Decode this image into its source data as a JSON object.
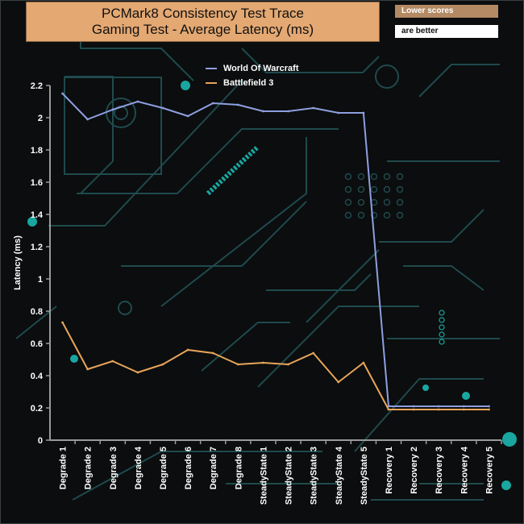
{
  "header": {
    "title_line1": "PCMark8 Consistency Test Trace",
    "title_line2": "Gaming Test -  Average Latency (ms)",
    "note_line1": "Lower scores",
    "note_line2": "are better"
  },
  "colors": {
    "background": "#0b0d0e",
    "circuit": "#1f4a4d",
    "accent_teal": "#1aa6a0",
    "title_box": "#e4a872",
    "note_box": "#b48a64",
    "axis": "#9a9a9a"
  },
  "chart_data": {
    "type": "line",
    "title": "PCMark8 Consistency Test Trace Gaming Test -  Average Latency (ms)",
    "xlabel": "",
    "ylabel": "Latency (ms)",
    "ylim": [
      0,
      2.2
    ],
    "yticks": [
      "0",
      "0.2",
      "0.4",
      "0.6",
      "0.8",
      "1",
      "1.2",
      "1.4",
      "1.6",
      "1.8",
      "2",
      "2.2"
    ],
    "grid": false,
    "legend_position": "top-center",
    "categories": [
      "Degrade 1",
      "Degrade 2",
      "Degrade 3",
      "Degrade 4",
      "Degrade 5",
      "Degrade 6",
      "Degrade 7",
      "Degrade 8",
      "SteadyState 1",
      "SteadyState 2",
      "SteadyState 3",
      "SteadyState 4",
      "SteadyState 5",
      "Recovery 1",
      "Recovery 2",
      "Recovery 3",
      "Recovery 4",
      "Recovery 5"
    ],
    "series": [
      {
        "name": "World Of Warcraft",
        "color": "#8e9fe0",
        "values": [
          2.15,
          1.99,
          2.05,
          2.1,
          2.06,
          2.01,
          2.09,
          2.08,
          2.04,
          2.04,
          2.06,
          2.03,
          2.03,
          0.21,
          0.21,
          0.21,
          0.21,
          0.21
        ]
      },
      {
        "name": "Battlefield 3",
        "color": "#e8a55a",
        "values": [
          0.73,
          0.44,
          0.49,
          0.42,
          0.47,
          0.56,
          0.54,
          0.47,
          0.48,
          0.47,
          0.54,
          0.36,
          0.48,
          0.19,
          0.19,
          0.19,
          0.19,
          0.19
        ]
      }
    ]
  }
}
